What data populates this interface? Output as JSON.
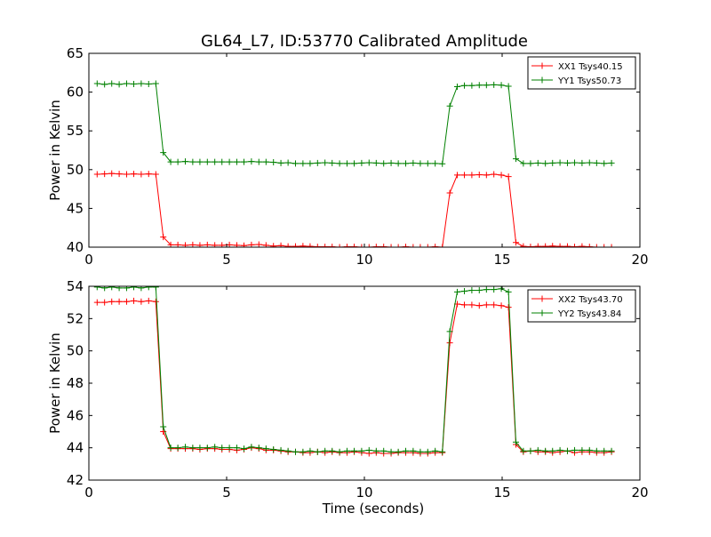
{
  "chart_data": [
    {
      "type": "line",
      "title": "GL64_L7, ID:53770 Calibrated Amplitude",
      "xlabel": "",
      "ylabel": "Power in Kelvin",
      "xlim": [
        0,
        20
      ],
      "ylim": [
        40,
        65
      ],
      "xticks": [
        0,
        5,
        10,
        15,
        20
      ],
      "yticks": [
        40,
        45,
        50,
        55,
        60,
        65
      ],
      "grid": false,
      "legend_position": "top-right",
      "x": [
        0.3,
        0.57,
        0.83,
        1.1,
        1.37,
        1.63,
        1.9,
        2.17,
        2.43,
        2.7,
        2.97,
        3.23,
        3.5,
        3.77,
        4.03,
        4.3,
        4.57,
        4.83,
        5.1,
        5.37,
        5.63,
        5.9,
        6.17,
        6.43,
        6.7,
        6.97,
        7.23,
        7.5,
        7.77,
        8.03,
        8.3,
        8.57,
        8.83,
        9.1,
        9.37,
        9.63,
        9.9,
        10.17,
        10.43,
        10.7,
        10.97,
        11.23,
        11.5,
        11.77,
        12.03,
        12.3,
        12.57,
        12.83,
        13.1,
        13.37,
        13.63,
        13.9,
        14.17,
        14.43,
        14.7,
        14.97,
        15.23,
        15.5,
        15.77,
        16.03,
        16.3,
        16.57,
        16.83,
        17.1,
        17.37,
        17.63,
        17.9,
        18.17,
        18.43,
        18.7,
        18.97
      ],
      "series": [
        {
          "name": "XX1 Tsys40.15",
          "color": "#ff0000",
          "values": [
            49.4,
            49.45,
            49.5,
            49.45,
            49.4,
            49.45,
            49.4,
            49.45,
            49.4,
            41.3,
            40.3,
            40.3,
            40.25,
            40.3,
            40.25,
            40.3,
            40.25,
            40.25,
            40.3,
            40.25,
            40.2,
            40.3,
            40.35,
            40.25,
            40.15,
            40.2,
            40.1,
            40.1,
            40.15,
            40.1,
            40.05,
            40.05,
            40.05,
            40.0,
            40.05,
            40.05,
            40.0,
            40.0,
            40.05,
            40.05,
            40.0,
            40.0,
            40.05,
            40.0,
            40.0,
            40.0,
            40.05,
            40.0,
            47.0,
            49.3,
            49.3,
            49.3,
            49.35,
            49.3,
            49.4,
            49.3,
            49.1,
            40.6,
            40.1,
            40.05,
            40.1,
            40.1,
            40.15,
            40.1,
            40.1,
            40.05,
            40.1,
            40.05,
            40.0,
            40.0,
            40.0
          ]
        },
        {
          "name": "YY1 Tsys50.73",
          "color": "#008000",
          "values": [
            61.1,
            61.0,
            61.1,
            61.0,
            61.1,
            61.05,
            61.1,
            61.05,
            61.1,
            52.2,
            51.0,
            51.0,
            51.05,
            51.0,
            51.0,
            51.0,
            51.0,
            51.0,
            51.0,
            51.0,
            51.0,
            51.05,
            51.0,
            51.0,
            50.95,
            50.85,
            50.9,
            50.8,
            50.8,
            50.8,
            50.85,
            50.9,
            50.85,
            50.8,
            50.8,
            50.8,
            50.85,
            50.9,
            50.85,
            50.8,
            50.85,
            50.8,
            50.8,
            50.85,
            50.8,
            50.8,
            50.8,
            50.75,
            58.2,
            60.7,
            60.85,
            60.85,
            60.9,
            60.9,
            60.95,
            60.9,
            60.75,
            51.4,
            50.8,
            50.8,
            50.85,
            50.8,
            50.85,
            50.9,
            50.85,
            50.9,
            50.85,
            50.9,
            50.85,
            50.8,
            50.85
          ]
        }
      ]
    },
    {
      "type": "line",
      "title": "",
      "xlabel": "Time (seconds)",
      "ylabel": "Power in Kelvin",
      "xlim": [
        0,
        20
      ],
      "ylim": [
        42,
        54
      ],
      "xticks": [
        0,
        5,
        10,
        15,
        20
      ],
      "yticks": [
        42,
        44,
        46,
        48,
        50,
        52,
        54
      ],
      "grid": false,
      "legend_position": "top-right",
      "x": [
        0.3,
        0.57,
        0.83,
        1.1,
        1.37,
        1.63,
        1.9,
        2.17,
        2.43,
        2.7,
        2.97,
        3.23,
        3.5,
        3.77,
        4.03,
        4.3,
        4.57,
        4.83,
        5.1,
        5.37,
        5.63,
        5.9,
        6.17,
        6.43,
        6.7,
        6.97,
        7.23,
        7.5,
        7.77,
        8.03,
        8.3,
        8.57,
        8.83,
        9.1,
        9.37,
        9.63,
        9.9,
        10.17,
        10.43,
        10.7,
        10.97,
        11.23,
        11.5,
        11.77,
        12.03,
        12.3,
        12.57,
        12.83,
        13.1,
        13.37,
        13.63,
        13.9,
        14.17,
        14.43,
        14.7,
        14.97,
        15.23,
        15.5,
        15.77,
        16.03,
        16.3,
        16.57,
        16.83,
        17.1,
        17.37,
        17.63,
        17.9,
        18.17,
        18.43,
        18.7,
        18.97
      ],
      "series": [
        {
          "name": "XX2 Tsys43.70",
          "color": "#ff0000",
          "values": [
            53.0,
            53.0,
            53.05,
            53.05,
            53.05,
            53.1,
            53.05,
            53.1,
            53.05,
            45.0,
            43.95,
            43.95,
            43.95,
            43.95,
            43.9,
            43.95,
            43.95,
            43.9,
            43.9,
            43.85,
            43.9,
            44.0,
            43.95,
            43.85,
            43.85,
            43.8,
            43.75,
            43.75,
            43.7,
            43.7,
            43.75,
            43.7,
            43.75,
            43.7,
            43.7,
            43.75,
            43.7,
            43.65,
            43.7,
            43.65,
            43.65,
            43.7,
            43.7,
            43.7,
            43.65,
            43.65,
            43.7,
            43.7,
            50.5,
            52.9,
            52.85,
            52.85,
            52.8,
            52.85,
            52.85,
            52.8,
            52.7,
            44.2,
            43.75,
            43.8,
            43.75,
            43.75,
            43.7,
            43.75,
            43.8,
            43.7,
            43.75,
            43.75,
            43.7,
            43.7,
            43.75
          ]
        },
        {
          "name": "YY2 Tsys43.84",
          "color": "#008000",
          "values": [
            53.95,
            53.9,
            53.95,
            53.9,
            53.9,
            53.95,
            53.9,
            53.95,
            53.95,
            45.3,
            44.0,
            44.0,
            44.05,
            44.0,
            44.0,
            44.0,
            44.05,
            44.0,
            44.0,
            44.0,
            43.95,
            44.05,
            44.0,
            43.95,
            43.9,
            43.85,
            43.8,
            43.75,
            43.75,
            43.8,
            43.75,
            43.8,
            43.8,
            43.75,
            43.8,
            43.8,
            43.8,
            43.85,
            43.8,
            43.8,
            43.75,
            43.75,
            43.8,
            43.8,
            43.75,
            43.75,
            43.8,
            43.75,
            51.2,
            53.65,
            53.7,
            53.75,
            53.75,
            53.8,
            53.8,
            53.85,
            53.65,
            44.35,
            43.8,
            43.8,
            43.85,
            43.8,
            43.8,
            43.85,
            43.8,
            43.85,
            43.85,
            43.85,
            43.8,
            43.8,
            43.8
          ]
        }
      ]
    }
  ]
}
